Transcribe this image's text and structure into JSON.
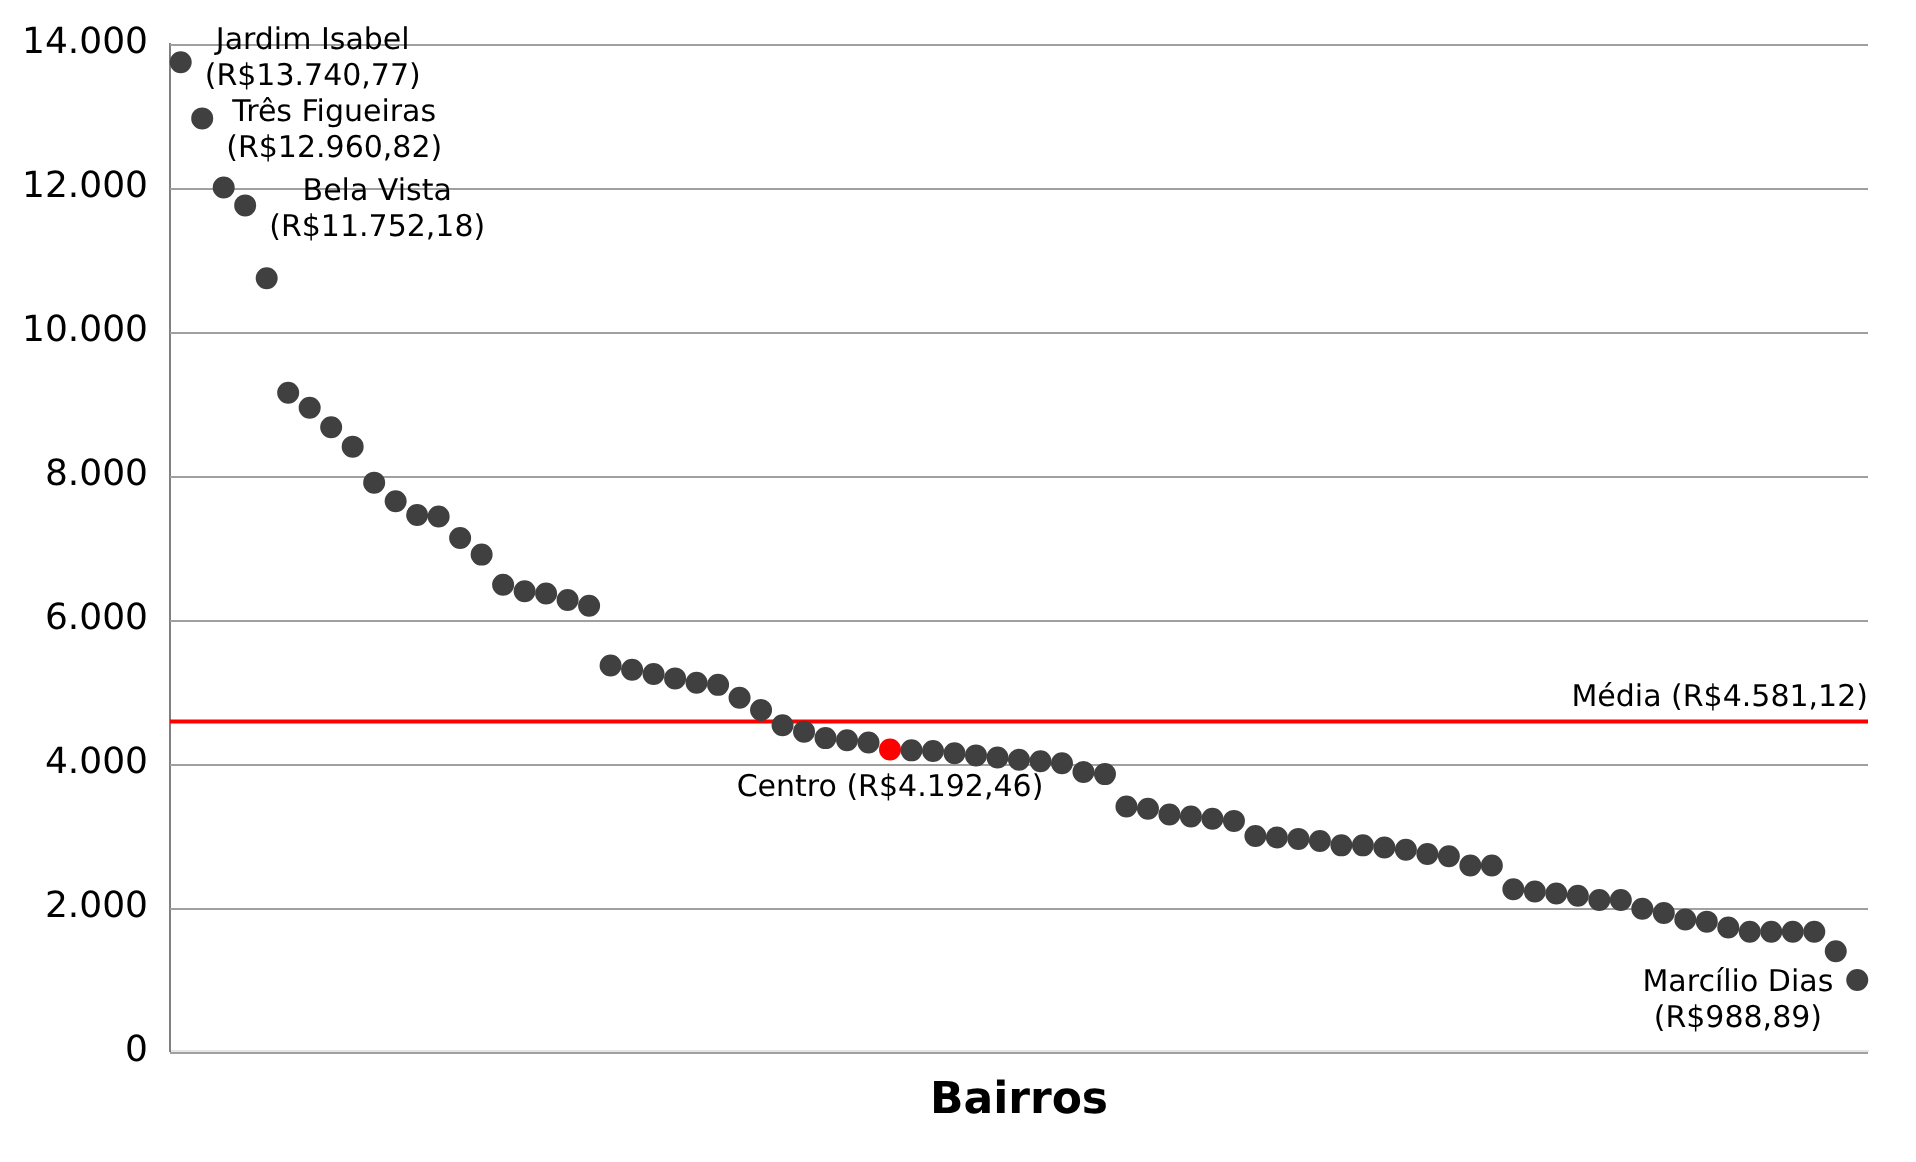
{
  "chart_data": {
    "type": "scatter",
    "xlabel": "Bairros",
    "categories": [
      null,
      null,
      null,
      null,
      null,
      null,
      null,
      null,
      null,
      null,
      null,
      null,
      null,
      null,
      null,
      null,
      null,
      null,
      null,
      null,
      null,
      null,
      null,
      null,
      null,
      null,
      null,
      null,
      null,
      null,
      null,
      null,
      null,
      null,
      null,
      null,
      null,
      null,
      null,
      null,
      null,
      null,
      null,
      null,
      null,
      null,
      null,
      null,
      null,
      null,
      null,
      null,
      null,
      null,
      null,
      null,
      null,
      null,
      null,
      null,
      null,
      null,
      null,
      null,
      null,
      null,
      null,
      null,
      null,
      null,
      null,
      null,
      null,
      null,
      null,
      null,
      null,
      null,
      null
    ],
    "values": [
      13740.77,
      12960.82,
      12000,
      11752.18,
      10740,
      9150,
      8940,
      8670,
      8400,
      7900,
      7640,
      7450,
      7430,
      7130,
      6900,
      6480,
      6390,
      6360,
      6270,
      6190,
      5360,
      5300,
      5240,
      5180,
      5120,
      5090,
      4910,
      4740,
      4530,
      4440,
      4350,
      4320,
      4290,
      4192.46,
      4180,
      4170,
      4140,
      4110,
      4080,
      4050,
      4030,
      4000,
      3880,
      3850,
      3400,
      3370,
      3290,
      3260,
      3230,
      3200,
      2990,
      2970,
      2950,
      2920,
      2860,
      2860,
      2830,
      2800,
      2740,
      2710,
      2580,
      2580,
      2250,
      2220,
      2190,
      2160,
      2100,
      2100,
      1980,
      1920,
      1830,
      1800,
      1720,
      1660,
      1660,
      1660,
      1660,
      1390,
      988.89
    ],
    "colors": [
      "#404040",
      "#404040",
      "#404040",
      "#404040",
      "#404040",
      "#404040",
      "#404040",
      "#404040",
      "#404040",
      "#404040",
      "#404040",
      "#404040",
      "#404040",
      "#404040",
      "#404040",
      "#404040",
      "#404040",
      "#404040",
      "#404040",
      "#404040",
      "#404040",
      "#404040",
      "#404040",
      "#404040",
      "#404040",
      "#404040",
      "#404040",
      "#404040",
      "#404040",
      "#404040",
      "#404040",
      "#404040",
      "#404040",
      "#ff0000",
      "#404040",
      "#404040",
      "#404040",
      "#404040",
      "#404040",
      "#404040",
      "#404040",
      "#404040",
      "#404040",
      "#404040",
      "#404040",
      "#404040",
      "#404040",
      "#404040",
      "#404040",
      "#404040",
      "#404040",
      "#404040",
      "#404040",
      "#404040",
      "#404040",
      "#404040",
      "#404040",
      "#404040",
      "#404040",
      "#404040",
      "#404040",
      "#404040",
      "#404040",
      "#404040",
      "#404040",
      "#404040",
      "#404040",
      "#404040",
      "#404040",
      "#404040",
      "#404040",
      "#404040",
      "#404040",
      "#404040",
      "#404040",
      "#404040",
      "#404040",
      "#404040",
      "#404040"
    ],
    "value_labels": [
      "Jardim Isabel\n(R$13.740,77)",
      "Três Figueiras\n(R$12.960,82)",
      null,
      "Bela Vista\n(R$11.752,18)",
      null,
      null,
      null,
      null,
      null,
      null,
      null,
      null,
      null,
      null,
      null,
      null,
      null,
      null,
      null,
      null,
      null,
      null,
      null,
      null,
      null,
      null,
      null,
      null,
      null,
      null,
      null,
      null,
      null,
      "Centro (R$4.192,46)",
      null,
      null,
      null,
      null,
      null,
      null,
      null,
      null,
      null,
      null,
      null,
      null,
      null,
      null,
      null,
      null,
      null,
      null,
      null,
      null,
      null,
      null,
      null,
      null,
      null,
      null,
      null,
      null,
      null,
      null,
      null,
      null,
      null,
      null,
      null,
      null,
      null,
      null,
      null,
      null,
      null,
      null,
      null,
      null,
      "Marcílio Dias\n(R$988,89)"
    ],
    "ylim": [
      0,
      14000
    ],
    "yticks": [
      {
        "value": 0,
        "label": "0"
      },
      {
        "value": 2000,
        "label": "2.000"
      },
      {
        "value": 4000,
        "label": "4.000"
      },
      {
        "value": 6000,
        "label": "6.000"
      },
      {
        "value": 8000,
        "label": "8.000"
      },
      {
        "value": 10000,
        "label": "10.000"
      },
      {
        "value": 12000,
        "label": "12.000"
      },
      {
        "value": 14000,
        "label": "14.000"
      }
    ],
    "grid": "y",
    "legend": false,
    "marker": "circle",
    "ref_lines": [
      {
        "axis": "y",
        "value": 4581.12,
        "label": "Média (R$4.581,12)",
        "color": "#ff0000"
      }
    ]
  }
}
